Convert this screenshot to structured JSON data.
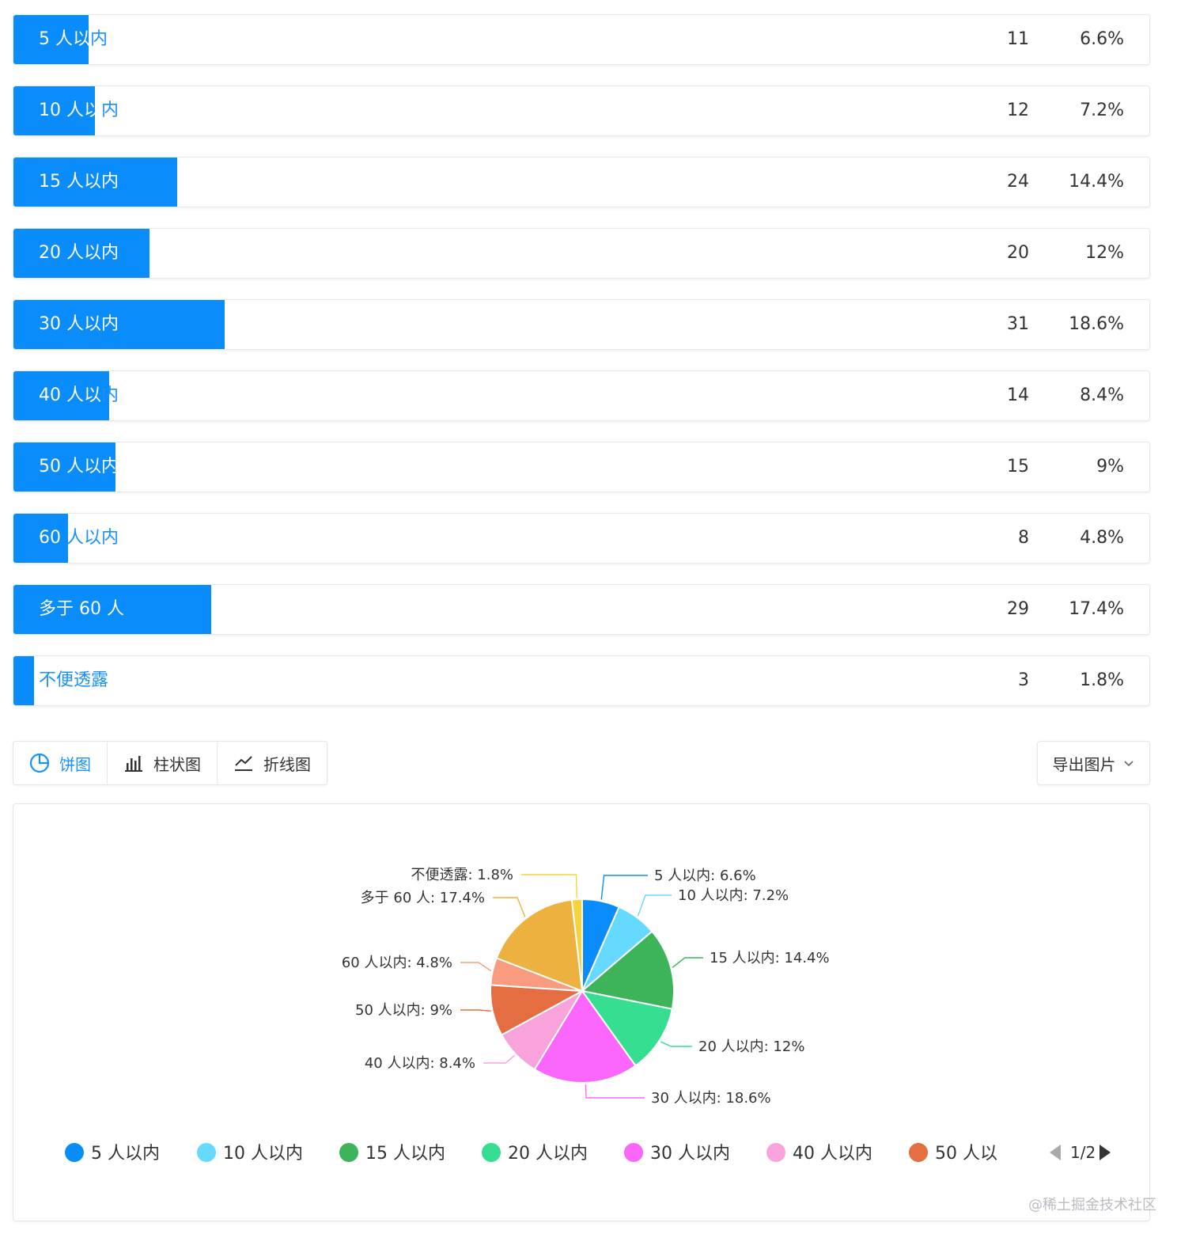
{
  "rows": [
    {
      "label": "5 人以内",
      "count": "11",
      "pct": "6.6%",
      "fraction": 0.066
    },
    {
      "label": "10 人以内",
      "count": "12",
      "pct": "7.2%",
      "fraction": 0.072
    },
    {
      "label": "15 人以内",
      "count": "24",
      "pct": "14.4%",
      "fraction": 0.144
    },
    {
      "label": "20 人以内",
      "count": "20",
      "pct": "12%",
      "fraction": 0.12
    },
    {
      "label": "30 人以内",
      "count": "31",
      "pct": "18.6%",
      "fraction": 0.186
    },
    {
      "label": "40 人以内",
      "count": "14",
      "pct": "8.4%",
      "fraction": 0.084
    },
    {
      "label": "50 人以内",
      "count": "15",
      "pct": "9%",
      "fraction": 0.09
    },
    {
      "label": "60 人以内",
      "count": "8",
      "pct": "4.8%",
      "fraction": 0.048
    },
    {
      "label": "多于 60 人",
      "count": "29",
      "pct": "17.4%",
      "fraction": 0.174
    },
    {
      "label": "不便透露",
      "count": "3",
      "pct": "1.8%",
      "fraction": 0.018
    }
  ],
  "tabs": [
    {
      "label": "饼图",
      "icon": "pie-chart-icon",
      "active": true
    },
    {
      "label": "柱状图",
      "icon": "bar-chart-icon",
      "active": false
    },
    {
      "label": "折线图",
      "icon": "line-chart-icon",
      "active": false
    }
  ],
  "export_label": "导出图片",
  "legend_page": "1/2",
  "watermark": "@稀土掘金技术社区",
  "chart_data": {
    "type": "pie",
    "categories": [
      "5 人以内",
      "10 人以内",
      "15 人以内",
      "20 人以内",
      "30 人以内",
      "40 人以内",
      "50 人以内",
      "60 人以内",
      "多于 60 人",
      "不便透露"
    ],
    "values": [
      11,
      12,
      24,
      20,
      31,
      14,
      15,
      8,
      29,
      3
    ],
    "slice_labels": [
      "5 人以内: 6.6%",
      "10 人以内: 7.2%",
      "15 人以内: 14.4%",
      "20 人以内: 12%",
      "30 人以内: 18.6%",
      "40 人以内: 8.4%",
      "50 人以内: 9%",
      "60 人以内: 4.8%",
      "多于 60 人: 17.4%",
      "不便透露: 1.8%"
    ],
    "colors": [
      "#0a8dfa",
      "#66d9ff",
      "#3db35a",
      "#35de91",
      "#fb66fb",
      "#f9a3dd",
      "#e46d41",
      "#f99b7e",
      "#ecb13e",
      "#f7d33a"
    ],
    "legend_visible": [
      "5 人以内",
      "10 人以内",
      "15 人以内",
      "20 人以内",
      "30 人以内",
      "40 人以内",
      "50 人以"
    ],
    "legend_placement": "bottom"
  }
}
